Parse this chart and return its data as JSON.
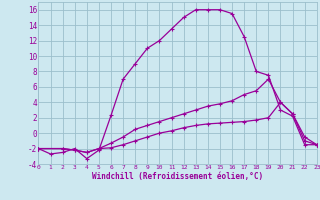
{
  "xlabel": "Windchill (Refroidissement éolien,°C)",
  "bg_color": "#cde8f0",
  "line_color": "#990099",
  "grid_color": "#9bbfcc",
  "xlim": [
    0,
    23
  ],
  "ylim": [
    -4,
    17
  ],
  "xticks": [
    0,
    1,
    2,
    3,
    4,
    5,
    6,
    7,
    8,
    9,
    10,
    11,
    12,
    13,
    14,
    15,
    16,
    17,
    18,
    19,
    20,
    21,
    22,
    23
  ],
  "yticks": [
    -4,
    -2,
    0,
    2,
    4,
    6,
    8,
    10,
    12,
    14,
    16
  ],
  "line1_x": [
    0,
    1,
    2,
    3,
    4,
    5,
    6,
    7,
    8,
    9,
    10,
    11,
    12,
    13,
    14,
    15,
    16,
    17,
    18,
    19,
    20,
    21,
    22,
    23
  ],
  "line1_y": [
    -2,
    -2.7,
    -2.5,
    -2.0,
    -3.3,
    -2.2,
    2.3,
    7.0,
    9.0,
    11.0,
    12.0,
    13.5,
    15.0,
    16.0,
    16.0,
    16.0,
    15.5,
    12.5,
    8.0,
    7.5,
    3.0,
    2.2,
    -1.5,
    -1.5
  ],
  "line2_x": [
    0,
    2,
    3,
    4,
    5,
    6,
    7,
    8,
    9,
    10,
    11,
    12,
    13,
    14,
    15,
    16,
    17,
    18,
    19,
    20,
    21,
    22,
    23
  ],
  "line2_y": [
    -2,
    -2,
    -2.2,
    -2.5,
    -2,
    -1.3,
    -0.5,
    0.5,
    1.0,
    1.5,
    2.0,
    2.5,
    3.0,
    3.5,
    3.8,
    4.2,
    5.0,
    5.5,
    7.0,
    4.0,
    2.5,
    -1.0,
    -1.5
  ],
  "line3_x": [
    0,
    2,
    3,
    4,
    5,
    6,
    7,
    8,
    9,
    10,
    11,
    12,
    13,
    14,
    15,
    16,
    17,
    18,
    19,
    20,
    21,
    22,
    23
  ],
  "line3_y": [
    -2,
    -2.0,
    -2.2,
    -2.5,
    -2,
    -1.9,
    -1.5,
    -1.0,
    -0.5,
    0.0,
    0.3,
    0.7,
    1.0,
    1.2,
    1.3,
    1.4,
    1.5,
    1.7,
    2.0,
    4.0,
    2.5,
    -0.5,
    -1.5
  ]
}
